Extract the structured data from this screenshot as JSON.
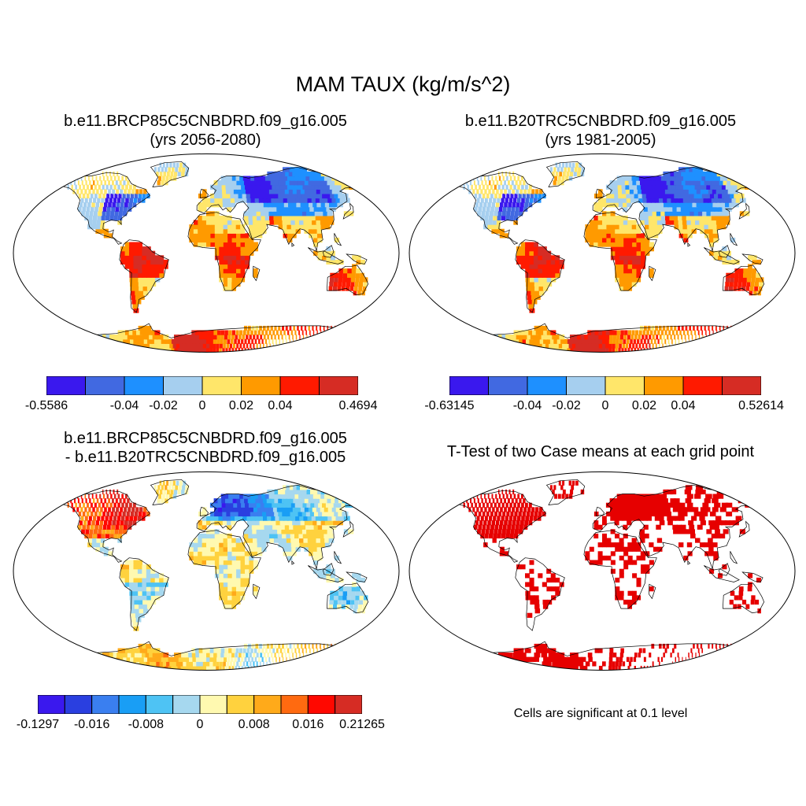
{
  "figure": {
    "title": "MAM TAUX (kg/m/s^2)"
  },
  "panels": [
    {
      "title_line1": "b.e11.BRCP85C5CNBDRD.f09_g16.005",
      "title_line2": "(yrs 2056-2080)",
      "colorbar": {
        "colors": [
          "#3a18ee",
          "#4169e1",
          "#1e90ff",
          "#a6cfef",
          "#ffe66a",
          "#ff9a00",
          "#ff1a00",
          "#d62c24"
        ],
        "labels": [
          "-0.5586",
          "-0.04",
          "-0.02",
          "0",
          "0.02",
          "0.04",
          "0.4694"
        ],
        "label_boundaries": [
          0,
          2,
          3,
          4,
          5,
          6,
          8
        ]
      }
    },
    {
      "title_line1": "b.e11.B20TRC5CNBDRD.f09_g16.005",
      "title_line2": "(yrs 1981-2005)",
      "colorbar": {
        "colors": [
          "#3a18ee",
          "#4169e1",
          "#1e90ff",
          "#a6cfef",
          "#ffe66a",
          "#ff9a00",
          "#ff1a00",
          "#d62c24"
        ],
        "labels": [
          "-0.63145",
          "-0.04",
          "-0.02",
          "0",
          "0.02",
          "0.04",
          "0.52614"
        ],
        "label_boundaries": [
          0,
          2,
          3,
          4,
          5,
          6,
          8
        ]
      }
    },
    {
      "title_line1": "b.e11.BRCP85C5CNBDRD.f09_g16.005",
      "title_line2": "- b.e11.B20TRC5CNBDRD.f09_g16.005",
      "colorbar": {
        "colors": [
          "#3a18ee",
          "#2a3fe0",
          "#3a7ff0",
          "#199ef5",
          "#4ec3f4",
          "#a6d8ef",
          "#fff9b0",
          "#ffd23e",
          "#ffaa1a",
          "#ff6a10",
          "#ff0800",
          "#d62c24"
        ],
        "labels": [
          "-0.1297",
          "-0.016",
          "-0.008",
          "0",
          "0.008",
          "0.016",
          "0.21265"
        ],
        "label_boundaries": [
          0,
          2,
          4,
          6,
          8,
          10,
          12
        ]
      }
    },
    {
      "title_line1": "T-Test of two Case means at each grid point",
      "significance_color": "#e60000",
      "note": "Cells are significant at 0.1 level"
    }
  ]
}
